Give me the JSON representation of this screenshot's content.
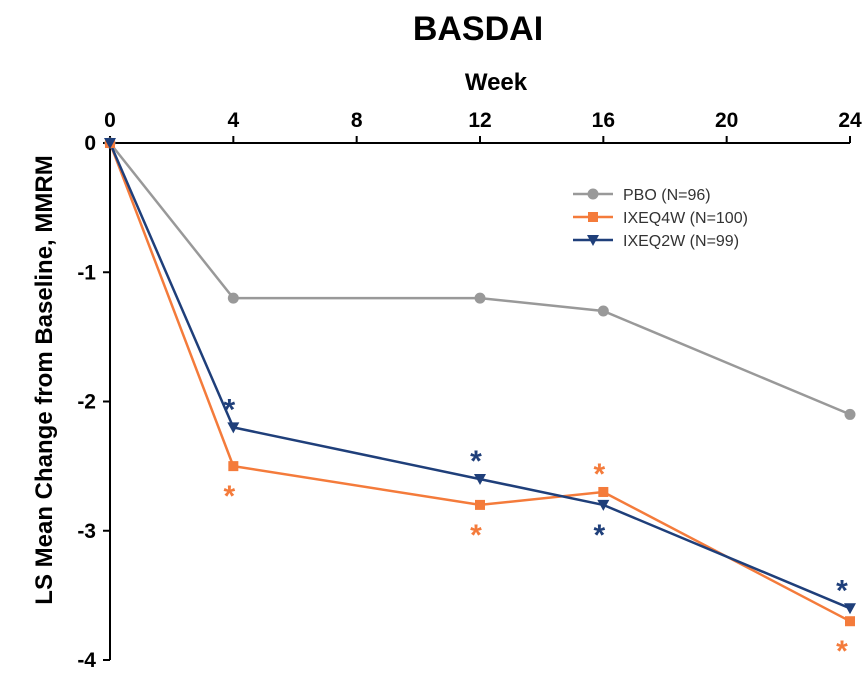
{
  "chart_data": {
    "type": "line",
    "title": "BASDAI",
    "xlabel": "Week",
    "ylabel": "LS Mean Change from Baseline, MMRM",
    "x_axis_position": "top",
    "xlim": [
      0,
      24
    ],
    "ylim": [
      -4,
      0
    ],
    "x_ticks": [
      0,
      4,
      8,
      12,
      16,
      20,
      24
    ],
    "y_ticks": [
      0,
      -1,
      -2,
      -3,
      -4
    ],
    "grid": false,
    "legend_position": "top-right",
    "series": [
      {
        "name": "PBO (N=96)",
        "color": "#999999",
        "marker": "circle",
        "x": [
          0,
          4,
          12,
          16,
          24
        ],
        "y": [
          0,
          -1.2,
          -1.2,
          -1.3,
          -2.1
        ]
      },
      {
        "name": "IXEQ4W (N=100)",
        "color": "#f47b3b",
        "marker": "square",
        "x": [
          0,
          4,
          12,
          16,
          24
        ],
        "y": [
          0,
          -2.5,
          -2.8,
          -2.7,
          -3.7
        ]
      },
      {
        "name": "IXEQ2W (N=99)",
        "color": "#1f3f7a",
        "marker": "triangle-down",
        "x": [
          0,
          4,
          12,
          16,
          24
        ],
        "y": [
          0,
          -2.2,
          -2.6,
          -2.8,
          -3.6
        ]
      }
    ],
    "annotations": [
      {
        "text": "*",
        "x": 4,
        "y": -2.2,
        "series": "IXEQ2W (N=99)",
        "placement": "above",
        "color": "#1f3f7a"
      },
      {
        "text": "*",
        "x": 4,
        "y": -2.5,
        "series": "IXEQ4W (N=100)",
        "placement": "below",
        "color": "#f47b3b"
      },
      {
        "text": "*",
        "x": 12,
        "y": -2.6,
        "series": "IXEQ2W (N=99)",
        "placement": "above",
        "color": "#1f3f7a"
      },
      {
        "text": "*",
        "x": 12,
        "y": -2.8,
        "series": "IXEQ4W (N=100)",
        "placement": "below",
        "color": "#f47b3b"
      },
      {
        "text": "*",
        "x": 16,
        "y": -2.7,
        "series": "IXEQ4W (N=100)",
        "placement": "above",
        "color": "#f47b3b"
      },
      {
        "text": "*",
        "x": 16,
        "y": -2.8,
        "series": "IXEQ2W (N=99)",
        "placement": "below",
        "color": "#1f3f7a"
      },
      {
        "text": "*",
        "x": 24,
        "y": -3.6,
        "series": "IXEQ2W (N=99)",
        "placement": "above",
        "color": "#1f3f7a"
      },
      {
        "text": "*",
        "x": 24,
        "y": -3.7,
        "series": "IXEQ4W (N=100)",
        "placement": "below",
        "color": "#f47b3b"
      }
    ]
  }
}
